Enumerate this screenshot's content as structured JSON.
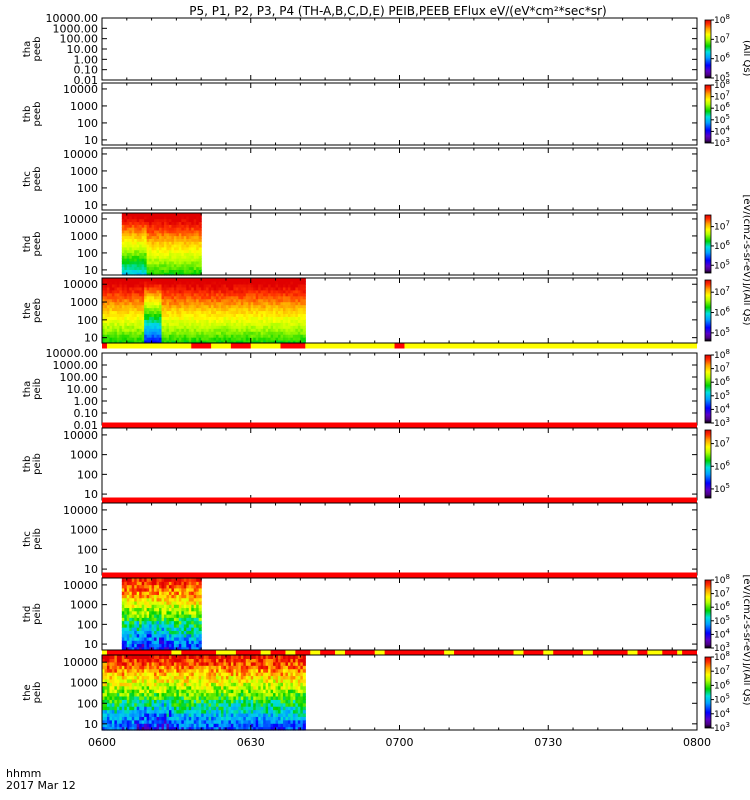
{
  "chart_data": {
    "type": "heatmap",
    "title": "P5, P1, P2, P3, P4 (TH-A,B,C,D,E) PEIB,PEEB EFlux eV/(eV*cm²*sec*sr)",
    "x_axis": {
      "tick_labels": [
        "0600",
        "0630",
        "0700",
        "0730",
        "0800"
      ],
      "tick_values_min": [
        0,
        30,
        60,
        90,
        120
      ],
      "range_min": [
        0,
        120
      ],
      "label_line1": "hhmm",
      "label_line2": "2017 Mar 12"
    },
    "colorbar_labels": {
      "peeb_short": "(All Qs)",
      "peeb_long": "[eV/(cm2-s-sr-eV)]/(All Qs)",
      "peib_long": "[eV/(cm2-s-sr-eV)]/(All Qs)"
    },
    "panels": [
      {
        "probe": "tha",
        "product": "peeb",
        "ylabel1": "tha",
        "ylabel2": "peeb",
        "ytick_labels": [
          "10000.00",
          "1000.00",
          "100.00",
          "10.00",
          "1.00",
          "0.10",
          "0.01"
        ],
        "yexp_range": [
          -2,
          4
        ],
        "colorbar": {
          "exp_min": 5,
          "exp_max": 8,
          "tick_exps": [
            5,
            6,
            7,
            8
          ]
        },
        "spectrogram": null,
        "flag_bar": null
      },
      {
        "probe": "thb",
        "product": "peeb",
        "ylabel1": "thb",
        "ylabel2": "peeb",
        "ytick_labels": [
          "10000",
          "1000",
          "100",
          "10"
        ],
        "yexp_range": [
          0.7,
          4.35
        ],
        "colorbar": {
          "exp_min": 3,
          "exp_max": 8,
          "tick_exps": [
            3,
            4,
            5,
            6,
            7,
            8
          ]
        },
        "spectrogram": null,
        "flag_bar": null
      },
      {
        "probe": "thc",
        "product": "peeb",
        "ylabel1": "thc",
        "ylabel2": "peeb",
        "ytick_labels": [
          "10000",
          "1000",
          "100",
          "10"
        ],
        "yexp_range": [
          0.7,
          4.35
        ],
        "colorbar": null,
        "spectrogram": null,
        "flag_bar": null
      },
      {
        "probe": "thd",
        "product": "peeb",
        "ylabel1": "thd",
        "ylabel2": "peeb",
        "ytick_labels": [
          "10000",
          "1000",
          "100",
          "10"
        ],
        "yexp_range": [
          0.7,
          4.35
        ],
        "colorbar": {
          "exp_min": 4.6,
          "exp_max": 7.6,
          "tick_exps": [
            5,
            6,
            7
          ]
        },
        "spectrogram": {
          "t_start_min": 4,
          "t_end_min": 20,
          "style": "peeb"
        },
        "flag_bar": null
      },
      {
        "probe": "the",
        "product": "peeb",
        "ylabel1": "the",
        "ylabel2": "peeb",
        "ytick_labels": [
          "10000",
          "1000",
          "100",
          "10"
        ],
        "yexp_range": [
          0.7,
          4.35
        ],
        "colorbar": {
          "exp_min": 4.6,
          "exp_max": 7.6,
          "tick_exps": [
            5,
            6,
            7
          ]
        },
        "spectrogram": {
          "t_start_min": 0,
          "t_end_min": 41,
          "style": "peeb_dip"
        },
        "flag_bar": {
          "color_base": "yellow",
          "segments_min": [
            [
              0,
              1,
              "red"
            ],
            [
              18,
              22,
              "red"
            ],
            [
              26,
              30,
              "red"
            ],
            [
              36,
              41,
              "red"
            ],
            [
              59,
              61,
              "red"
            ]
          ]
        }
      },
      {
        "probe": "tha",
        "product": "peib",
        "ylabel1": "tha",
        "ylabel2": "peib",
        "ytick_labels": [
          "10000.00",
          "1000.00",
          "100.00",
          "10.00",
          "1.00",
          "0.10",
          "0.01"
        ],
        "yexp_range": [
          -2,
          4
        ],
        "colorbar": {
          "exp_min": 3,
          "exp_max": 8,
          "tick_exps": [
            3,
            4,
            5,
            6,
            7,
            8
          ]
        },
        "spectrogram": null,
        "flag_bar": {
          "color_base": "red",
          "segments_min": []
        }
      },
      {
        "probe": "thb",
        "product": "peib",
        "ylabel1": "thb",
        "ylabel2": "peib",
        "ytick_labels": [
          "10000",
          "1000",
          "100",
          "10"
        ],
        "yexp_range": [
          0.7,
          4.35
        ],
        "colorbar": {
          "exp_min": 4.6,
          "exp_max": 7.6,
          "tick_exps": [
            5,
            6,
            7
          ]
        },
        "spectrogram": null,
        "flag_bar": {
          "color_base": "red",
          "segments_min": []
        }
      },
      {
        "probe": "thc",
        "product": "peib",
        "ylabel1": "thc",
        "ylabel2": "peib",
        "ytick_labels": [
          "10000",
          "1000",
          "100",
          "10"
        ],
        "yexp_range": [
          0.7,
          4.35
        ],
        "colorbar": null,
        "spectrogram": null,
        "flag_bar": {
          "color_base": "red",
          "segments_min": []
        }
      },
      {
        "probe": "thd",
        "product": "peib",
        "ylabel1": "thd",
        "ylabel2": "peib",
        "ytick_labels": [
          "10000",
          "1000",
          "100",
          "10"
        ],
        "yexp_range": [
          0.7,
          4.35
        ],
        "colorbar": {
          "exp_min": 3,
          "exp_max": 8,
          "tick_exps": [
            3,
            4,
            5,
            6,
            7,
            8
          ]
        },
        "spectrogram": {
          "t_start_min": 4,
          "t_end_min": 20,
          "style": "peib"
        },
        "flag_bar": {
          "color_base": "red",
          "segments_min": [
            [
              0,
              1,
              "yellow"
            ],
            [
              14,
              16,
              "yellow"
            ],
            [
              23,
              27,
              "yellow"
            ],
            [
              32,
              34,
              "yellow"
            ],
            [
              37,
              39,
              "yellow"
            ],
            [
              42,
              44,
              "yellow"
            ],
            [
              47,
              49,
              "yellow"
            ],
            [
              55,
              57,
              "yellow"
            ],
            [
              69,
              71,
              "yellow"
            ],
            [
              83,
              85,
              "yellow"
            ],
            [
              89,
              91,
              "yellow"
            ],
            [
              97,
              99,
              "yellow"
            ],
            [
              106,
              108,
              "yellow"
            ],
            [
              110,
              113,
              "yellow"
            ],
            [
              116,
              117,
              "yellow"
            ]
          ]
        }
      },
      {
        "probe": "the",
        "product": "peib",
        "ylabel1": "the",
        "ylabel2": "peib",
        "ytick_labels": [
          "10000",
          "1000",
          "100",
          "10"
        ],
        "yexp_range": [
          0.7,
          4.35
        ],
        "colorbar": {
          "exp_min": 3,
          "exp_max": 8,
          "tick_exps": [
            3,
            4,
            5,
            6,
            7,
            8
          ]
        },
        "spectrogram": {
          "t_start_min": 0,
          "t_end_min": 41,
          "style": "peib"
        },
        "flag_bar": null
      }
    ]
  }
}
